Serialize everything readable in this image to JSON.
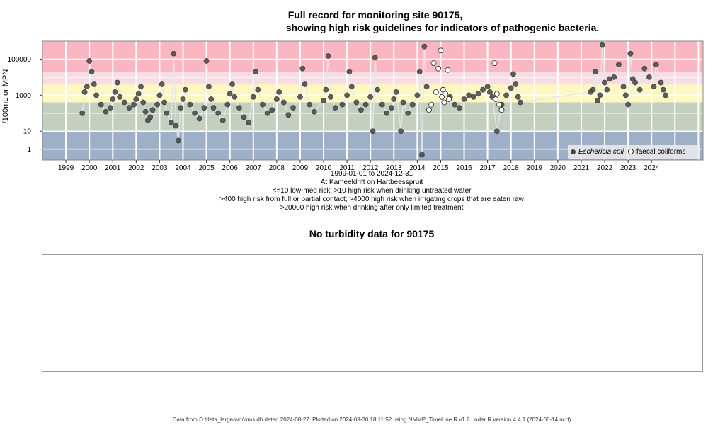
{
  "chart_data": {
    "type": "scatter",
    "title": "Full record for monitoring site 90175,",
    "subtitle": "showing high risk guidelines for indicators of pathogenic bacteria.",
    "ylabel": "/100mL or MPN",
    "yscale": "log",
    "ylim": [
      0.25,
      1000000
    ],
    "xlim": [
      1998.0,
      2026.2
    ],
    "y_ticks": [
      "1",
      "10",
      "1000",
      "100000"
    ],
    "x_ticks": [
      "1999",
      "2000",
      "2001",
      "2002",
      "2003",
      "2004",
      "2005",
      "2006",
      "2007",
      "2008",
      "2009",
      "2010",
      "2011",
      "2012",
      "2013",
      "2014",
      "2015",
      "2016",
      "2017",
      "2018",
      "2019",
      "2020",
      "2021",
      "2022",
      "2023",
      "2024"
    ],
    "grid": true,
    "legend_position": "bottom-right",
    "risk_bands": [
      {
        "from": 0.25,
        "to": 10,
        "color": "#9eafc8"
      },
      {
        "from": 10,
        "to": 400,
        "color": "#c3cfbf"
      },
      {
        "from": 400,
        "to": 4000,
        "color": "#fdf7c3"
      },
      {
        "from": 4000,
        "to": 20000,
        "color": "#f7dce6"
      },
      {
        "from": 20000,
        "to": 1000000,
        "color": "#fbb7c1"
      }
    ],
    "series": [
      {
        "name": "Eschericia coli",
        "marker": "filled",
        "color": "#444444",
        "points": [
          [
            1999.7,
            100
          ],
          [
            1999.8,
            1500
          ],
          [
            1999.9,
            3000
          ],
          [
            2000.0,
            80000
          ],
          [
            2000.1,
            20000
          ],
          [
            2000.2,
            4000
          ],
          [
            2000.3,
            1000
          ],
          [
            2000.5,
            300
          ],
          [
            2000.7,
            120
          ],
          [
            2000.9,
            200
          ],
          [
            2001.0,
            600
          ],
          [
            2001.1,
            1500
          ],
          [
            2001.2,
            5000
          ],
          [
            2001.3,
            800
          ],
          [
            2001.5,
            400
          ],
          [
            2001.7,
            200
          ],
          [
            2001.9,
            300
          ],
          [
            2002.0,
            600
          ],
          [
            2002.1,
            1200
          ],
          [
            2002.2,
            3000
          ],
          [
            2002.3,
            400
          ],
          [
            2002.4,
            120
          ],
          [
            2002.5,
            40
          ],
          [
            2002.6,
            60
          ],
          [
            2002.7,
            150
          ],
          [
            2002.9,
            300
          ],
          [
            2003.0,
            1000
          ],
          [
            2003.1,
            4000
          ],
          [
            2003.2,
            400
          ],
          [
            2003.3,
            100
          ],
          [
            2003.5,
            30
          ],
          [
            2003.6,
            200000
          ],
          [
            2003.7,
            20
          ],
          [
            2003.8,
            3
          ],
          [
            2003.9,
            200
          ],
          [
            2004.0,
            600
          ],
          [
            2004.1,
            2000
          ],
          [
            2004.3,
            300
          ],
          [
            2004.5,
            100
          ],
          [
            2004.7,
            50
          ],
          [
            2004.9,
            200
          ],
          [
            2005.0,
            80000
          ],
          [
            2005.1,
            3000
          ],
          [
            2005.2,
            600
          ],
          [
            2005.3,
            200
          ],
          [
            2005.5,
            100
          ],
          [
            2005.7,
            40
          ],
          [
            2005.9,
            300
          ],
          [
            2006.0,
            1200
          ],
          [
            2006.1,
            4000
          ],
          [
            2006.2,
            800
          ],
          [
            2006.4,
            200
          ],
          [
            2006.6,
            60
          ],
          [
            2006.8,
            30
          ],
          [
            2007.0,
            800
          ],
          [
            2007.1,
            20000
          ],
          [
            2007.2,
            2000
          ],
          [
            2007.4,
            300
          ],
          [
            2007.6,
            100
          ],
          [
            2007.8,
            150
          ],
          [
            2008.0,
            600
          ],
          [
            2008.1,
            1500
          ],
          [
            2008.3,
            400
          ],
          [
            2008.5,
            80
          ],
          [
            2008.7,
            200
          ],
          [
            2009.0,
            800
          ],
          [
            2009.1,
            30000
          ],
          [
            2009.2,
            4000
          ],
          [
            2009.4,
            300
          ],
          [
            2009.6,
            120
          ],
          [
            2010.0,
            500
          ],
          [
            2010.1,
            2000
          ],
          [
            2010.2,
            150000
          ],
          [
            2010.3,
            800
          ],
          [
            2010.5,
            200
          ],
          [
            2010.8,
            300
          ],
          [
            2011.0,
            1000
          ],
          [
            2011.1,
            20000
          ],
          [
            2011.2,
            3000
          ],
          [
            2011.4,
            400
          ],
          [
            2011.6,
            150
          ],
          [
            2011.8,
            300
          ],
          [
            2012.0,
            800
          ],
          [
            2012.1,
            10
          ],
          [
            2012.2,
            120000
          ],
          [
            2012.3,
            2000
          ],
          [
            2012.5,
            300
          ],
          [
            2012.7,
            100
          ],
          [
            2012.9,
            200
          ],
          [
            2013.0,
            600
          ],
          [
            2013.1,
            1500
          ],
          [
            2013.3,
            10
          ],
          [
            2013.4,
            400
          ],
          [
            2013.6,
            100
          ],
          [
            2013.8,
            300
          ],
          [
            2014.0,
            1000
          ],
          [
            2014.1,
            20000
          ],
          [
            2014.2,
            0.5
          ],
          [
            2014.3,
            500000
          ],
          [
            2014.4,
            3000
          ],
          [
            2015.4,
            800
          ],
          [
            2015.6,
            300
          ],
          [
            2015.8,
            200
          ],
          [
            2016.0,
            600
          ],
          [
            2016.2,
            1000
          ],
          [
            2016.4,
            800
          ],
          [
            2016.6,
            1200
          ],
          [
            2016.8,
            2000
          ],
          [
            2017.0,
            3000
          ],
          [
            2017.1,
            1500
          ],
          [
            2017.2,
            800
          ],
          [
            2017.4,
            10
          ],
          [
            2017.6,
            300
          ],
          [
            2017.8,
            1000
          ],
          [
            2018.0,
            2500
          ],
          [
            2018.1,
            15000
          ],
          [
            2018.2,
            4000
          ],
          [
            2018.3,
            800
          ],
          [
            2018.4,
            400
          ],
          [
            2021.4,
            1500
          ],
          [
            2021.5,
            2000
          ],
          [
            2021.6,
            20000
          ],
          [
            2021.7,
            500
          ],
          [
            2021.8,
            1000
          ],
          [
            2021.9,
            600000
          ],
          [
            2022.0,
            5000
          ],
          [
            2022.1,
            2000
          ],
          [
            2022.2,
            8000
          ],
          [
            2022.4,
            10000
          ],
          [
            2022.6,
            50000
          ],
          [
            2022.8,
            3000
          ],
          [
            2022.9,
            1000
          ],
          [
            2023.0,
            300
          ],
          [
            2023.1,
            200000
          ],
          [
            2023.2,
            8000
          ],
          [
            2023.3,
            5000
          ],
          [
            2023.5,
            2000
          ],
          [
            2023.7,
            30000
          ],
          [
            2023.9,
            10000
          ],
          [
            2024.1,
            3000
          ],
          [
            2024.2,
            50000
          ],
          [
            2024.4,
            5000
          ],
          [
            2024.5,
            2000
          ],
          [
            2024.6,
            1000
          ]
        ]
      },
      {
        "name": "faecal coliforms",
        "marker": "open",
        "color": "#222222",
        "points": [
          [
            2014.5,
            150
          ],
          [
            2014.6,
            300
          ],
          [
            2014.7,
            60000
          ],
          [
            2014.8,
            1500
          ],
          [
            2014.9,
            30000
          ],
          [
            2015.0,
            300000
          ],
          [
            2015.05,
            800
          ],
          [
            2015.1,
            2000
          ],
          [
            2015.15,
            400
          ],
          [
            2015.2,
            1200
          ],
          [
            2015.3,
            25000
          ],
          [
            2015.35,
            600
          ],
          [
            2017.3,
            60000
          ],
          [
            2017.35,
            600
          ],
          [
            2017.4,
            1200
          ],
          [
            2017.5,
            300
          ],
          [
            2017.6,
            150
          ]
        ]
      }
    ],
    "legend": [
      "Eschericia coli",
      "faecal coliforms"
    ],
    "x_caption": "1999-01-01 to 2024-12-31",
    "site_caption": "At Kameeldrift on Hartbeesspruit",
    "notes": [
      "<=10 low-med risk; >10 high risk when drinking untreated water",
      ">400 high risk from full or partial contact; >4000 high risk when irrigating crops that are eaten raw",
      ">20000 high risk when drinking after only limited treatment"
    ]
  },
  "turbidity": {
    "title": "No turbidity data for 90175"
  },
  "footer": "Data from D:/data_large/wq/wms.db dated 2024-08-27. Plotted on 2024-09-30 18:11:52 using NMMP_TimeLine.R v1.8 under R version 4.4.1 (2024-06-14 ucrt)"
}
